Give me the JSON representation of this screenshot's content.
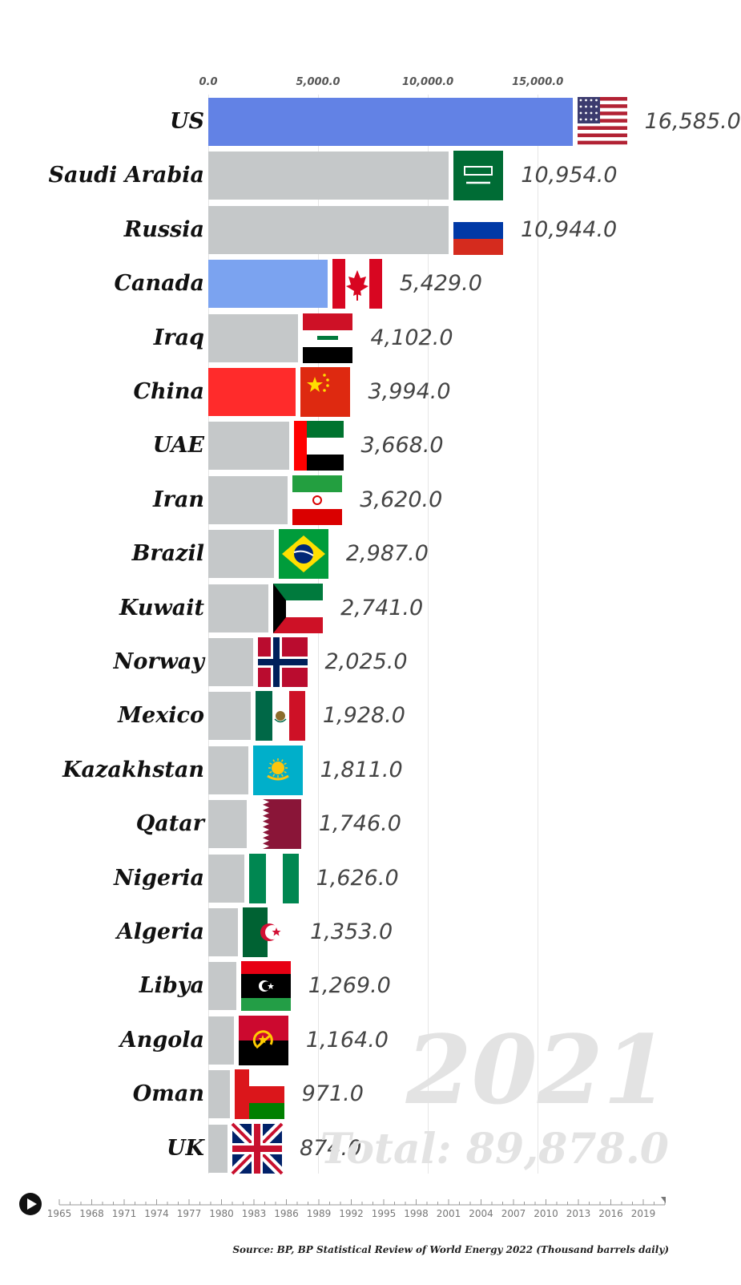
{
  "chart_data": {
    "type": "bar",
    "orientation": "horizontal",
    "categories": [
      "US",
      "Saudi Arabia",
      "Russia",
      "Canada",
      "Iraq",
      "China",
      "UAE",
      "Iran",
      "Brazil",
      "Kuwait",
      "Norway",
      "Mexico",
      "Kazakhstan",
      "Qatar",
      "Nigeria",
      "Algeria",
      "Libya",
      "Angola",
      "Oman",
      "UK"
    ],
    "values": [
      16585.0,
      10954.0,
      10944.0,
      5429.0,
      4102.0,
      3994.0,
      3668.0,
      3620.0,
      2987.0,
      2741.0,
      2025.0,
      1928.0,
      1811.0,
      1746.0,
      1626.0,
      1353.0,
      1269.0,
      1164.0,
      971.0,
      874.0
    ],
    "value_labels": [
      "16,585.0",
      "10,954.0",
      "10,944.0",
      "5,429.0",
      "4,102.0",
      "3,994.0",
      "3,668.0",
      "3,620.0",
      "2,987.0",
      "2,741.0",
      "2,025.0",
      "1,928.0",
      "1,811.0",
      "1,746.0",
      "1,626.0",
      "1,353.0",
      "1,269.0",
      "1,164.0",
      "971.0",
      "874.0"
    ],
    "bar_colors": [
      "#6282e5",
      "#c5c8c9",
      "#c5c8c9",
      "#7ba3f0",
      "#c5c8c9",
      "#ff2b2b",
      "#c5c8c9",
      "#c5c8c9",
      "#c5c8c9",
      "#c5c8c9",
      "#c5c8c9",
      "#c5c8c9",
      "#c5c8c9",
      "#c5c8c9",
      "#c5c8c9",
      "#c5c8c9",
      "#c5c8c9",
      "#c5c8c9",
      "#c5c8c9",
      "#c5c8c9"
    ],
    "flag_icons": [
      "us-flag-icon",
      "saudi-arabia-flag-icon",
      "russia-flag-icon",
      "canada-flag-icon",
      "iraq-flag-icon",
      "china-flag-icon",
      "uae-flag-icon",
      "iran-flag-icon",
      "brazil-flag-icon",
      "kuwait-flag-icon",
      "norway-flag-icon",
      "mexico-flag-icon",
      "kazakhstan-flag-icon",
      "qatar-flag-icon",
      "nigeria-flag-icon",
      "algeria-flag-icon",
      "libya-flag-icon",
      "angola-flag-icon",
      "oman-flag-icon",
      "uk-flag-icon"
    ],
    "x_ticks": [
      0,
      5000,
      10000,
      15000
    ],
    "x_tick_labels": [
      "0.0",
      "5,000.0",
      "10,000.0",
      "15,000.0"
    ],
    "xlim": [
      0,
      17000
    ],
    "axis_position": "top",
    "grid": true,
    "year": "2021",
    "total_label": "Total: 89,878.0"
  },
  "timeline": {
    "years": [
      "1965",
      "1968",
      "1971",
      "1974",
      "1977",
      "1980",
      "1983",
      "1986",
      "1989",
      "1992",
      "1995",
      "1998",
      "2001",
      "2004",
      "2007",
      "2010",
      "2013",
      "2016",
      "2019"
    ],
    "range": [
      1965,
      2021
    ],
    "current": 2021
  },
  "source": "Source: BP, BP Statistical Review of World Energy 2022 (Thousand barrels daily)"
}
